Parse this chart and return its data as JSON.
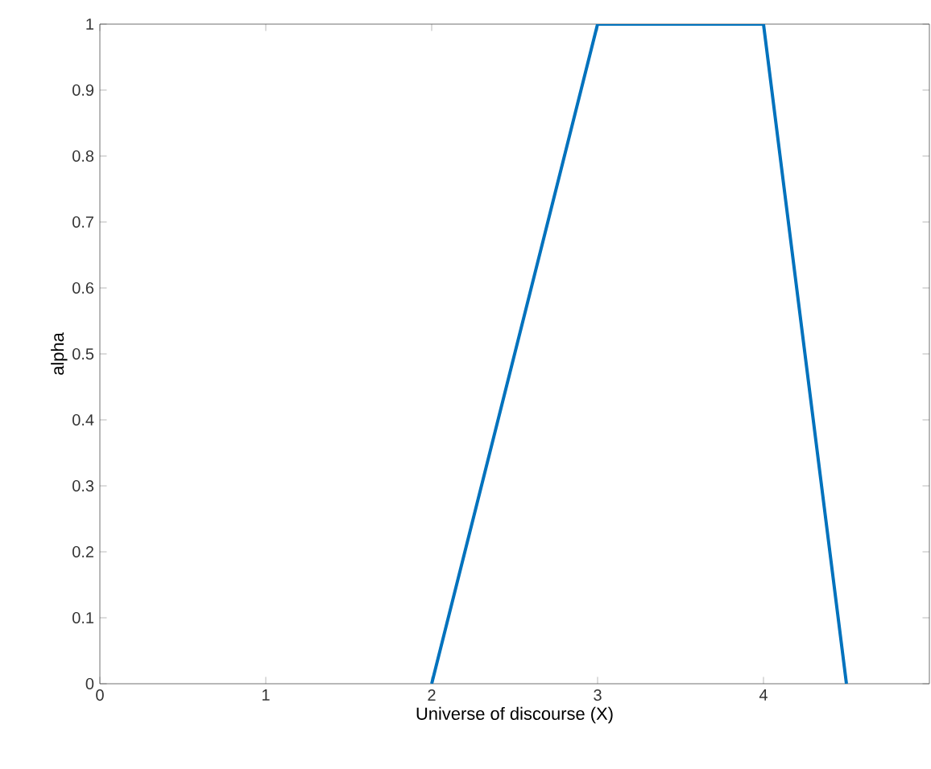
{
  "chart_data": {
    "type": "line",
    "xlabel": "Universe of discourse (X)",
    "ylabel": "alpha",
    "x": [
      2,
      3,
      4,
      4.5
    ],
    "series": [
      {
        "color": "#0072bd",
        "values": [
          0,
          1,
          1,
          0
        ]
      }
    ],
    "xlim": [
      0,
      5
    ],
    "xticks": [
      0,
      1,
      2,
      3,
      4
    ],
    "ylim": [
      0,
      1
    ],
    "yticks": [
      0,
      0.1,
      0.2,
      0.3,
      0.4,
      0.5,
      0.6,
      0.7,
      0.8,
      0.9,
      1
    ],
    "grid": false,
    "marker": "none",
    "line_style": "solid"
  }
}
